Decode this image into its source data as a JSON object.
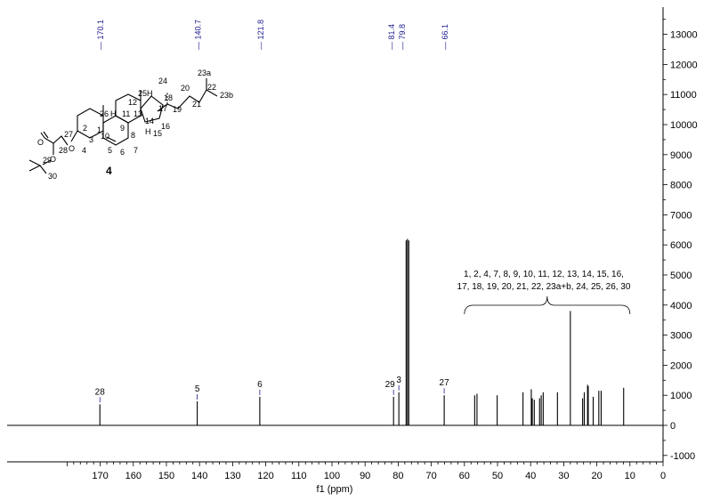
{
  "chart_data": {
    "type": "line",
    "xlabel": "f1 (ppm)",
    "ylabel": "",
    "xlim": [
      180,
      0
    ],
    "ylim": [
      -1200,
      13800
    ],
    "x_ticks": [
      "170",
      "160",
      "150",
      "140",
      "130",
      "120",
      "110",
      "100",
      "90",
      "80",
      "70",
      "60",
      "50",
      "40",
      "30",
      "20",
      "10",
      "0"
    ],
    "y_ticks": [
      "-1000",
      "0",
      "1000",
      "2000",
      "3000",
      "4000",
      "5000",
      "6000",
      "7000",
      "8000",
      "9000",
      "10000",
      "11000",
      "12000",
      "13000"
    ],
    "top_peak_labels": [
      "170.1",
      "140.7",
      "121.8",
      "81.4",
      "79.8",
      "66.1"
    ],
    "peaks": [
      {
        "x": 170.1,
        "y": 700,
        "label": "28"
      },
      {
        "x": 140.7,
        "y": 800,
        "label": "5"
      },
      {
        "x": 121.8,
        "y": 950,
        "label": "6"
      },
      {
        "x": 81.4,
        "y": 950,
        "label": "29"
      },
      {
        "x": 79.8,
        "y": 1100,
        "label": "3"
      },
      {
        "x": 77.6,
        "y": 6150,
        "label": ""
      },
      {
        "x": 77.2,
        "y": 6200,
        "label": ""
      },
      {
        "x": 76.8,
        "y": 6150,
        "label": ""
      },
      {
        "x": 66.1,
        "y": 1000,
        "label": "27"
      },
      {
        "x": 56.9,
        "y": 1000,
        "label": ""
      },
      {
        "x": 56.2,
        "y": 1050,
        "label": ""
      },
      {
        "x": 50.1,
        "y": 1000,
        "label": ""
      },
      {
        "x": 42.3,
        "y": 1100,
        "label": ""
      },
      {
        "x": 39.8,
        "y": 1200,
        "label": ""
      },
      {
        "x": 39.5,
        "y": 900,
        "label": ""
      },
      {
        "x": 38.9,
        "y": 850,
        "label": ""
      },
      {
        "x": 37.3,
        "y": 900,
        "label": ""
      },
      {
        "x": 36.8,
        "y": 1000,
        "label": ""
      },
      {
        "x": 36.2,
        "y": 1100,
        "label": ""
      },
      {
        "x": 31.9,
        "y": 1100,
        "label": ""
      },
      {
        "x": 28.0,
        "y": 3800,
        "label": ""
      },
      {
        "x": 24.3,
        "y": 900,
        "label": ""
      },
      {
        "x": 23.8,
        "y": 1100,
        "label": ""
      },
      {
        "x": 22.8,
        "y": 1350,
        "label": ""
      },
      {
        "x": 22.6,
        "y": 1300,
        "label": ""
      },
      {
        "x": 21.1,
        "y": 950,
        "label": ""
      },
      {
        "x": 19.4,
        "y": 1150,
        "label": ""
      },
      {
        "x": 18.7,
        "y": 1150,
        "label": ""
      },
      {
        "x": 11.9,
        "y": 1250,
        "label": ""
      }
    ],
    "annotation": {
      "line1": "1, 2, 4, 7, 8, 9, 10, 11, 12, 13, 14, 15, 16,",
      "line2": "17, 18, 19, 20, 21, 22, 23a+b, 24, 25, 26, 30",
      "range": [
        60,
        10
      ]
    },
    "grid": false
  },
  "molecule": {
    "compound_number": "4",
    "atom_labels": [
      "23a",
      "24",
      "22",
      "25H",
      "18",
      "20",
      "23b",
      "12",
      "26",
      "H",
      "11",
      "13",
      "17",
      "19",
      "21",
      "2",
      "1",
      "9",
      "14",
      "16",
      "27",
      "10",
      "8",
      "H",
      "15",
      "O",
      "3",
      "O",
      "28",
      "5",
      "7",
      "4",
      "6",
      "29",
      "O",
      "30"
    ]
  }
}
